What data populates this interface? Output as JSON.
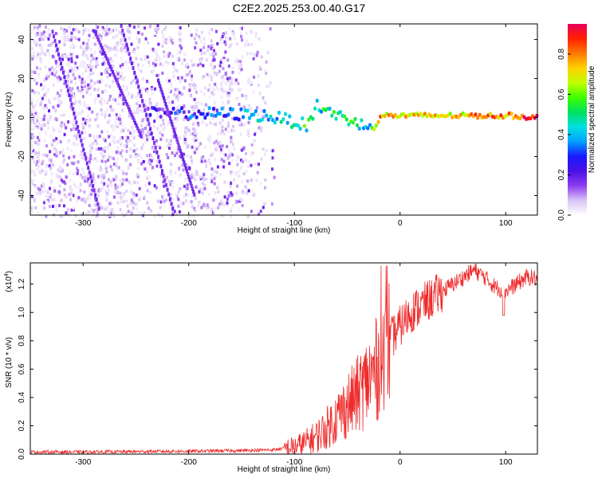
{
  "title": "C2E2.2025.253.00.40.G17",
  "chart_data": [
    {
      "type": "heatmap",
      "xlabel": "Height of straight line (km)",
      "ylabel": "Frequency (Hz)",
      "xlim": [
        -350,
        130
      ],
      "ylim": [
        -50,
        48
      ],
      "xticks": [
        -300,
        -200,
        -100,
        0,
        100
      ],
      "yticks": [
        -40,
        -20,
        0,
        20,
        40
      ],
      "colorbar": {
        "label": "Normalized spectral amplitude",
        "range": [
          0,
          0.95
        ],
        "ticks": [
          "0.0",
          "0.2",
          "0.4",
          "0.6",
          "0.8"
        ],
        "colors": [
          "#ffffff",
          "#d9c4f5",
          "#8c3cf0",
          "#4a10e6",
          "#1a1aff",
          "#00a0ff",
          "#00e0e0",
          "#00e060",
          "#40ff00",
          "#c0ff00",
          "#ffd000",
          "#ff7a00",
          "#ff2000",
          "#e8005a"
        ]
      },
      "main_trace": [
        {
          "x": -240,
          "y": 2,
          "a": 0.18
        },
        {
          "x": -170,
          "y": 2,
          "a": 0.3
        },
        {
          "x": -130,
          "y": 1,
          "a": 0.4
        },
        {
          "x": -110,
          "y": -1,
          "a": 0.45
        },
        {
          "x": -90,
          "y": -4,
          "a": 0.5
        },
        {
          "x": -80,
          "y": 6,
          "a": 0.45
        },
        {
          "x": -60,
          "y": 1,
          "a": 0.5
        },
        {
          "x": -40,
          "y": -3,
          "a": 0.5
        },
        {
          "x": -30,
          "y": -6,
          "a": 0.4
        },
        {
          "x": -20,
          "y": 1,
          "a": 0.75
        },
        {
          "x": 0,
          "y": 1,
          "a": 0.7
        },
        {
          "x": 40,
          "y": 1,
          "a": 0.7
        },
        {
          "x": 100,
          "y": 1,
          "a": 0.8
        },
        {
          "x": 130,
          "y": 0,
          "a": 0.95
        }
      ]
    },
    {
      "type": "line",
      "xlabel": "Height of straight line (km)",
      "ylabel": "SNR (10 * v/v)",
      "yscale_label": "(x10",
      "yscale_exp": "4",
      "yscale_close": ")",
      "xlim": [
        -350,
        130
      ],
      "ylim": [
        0,
        1.35
      ],
      "xticks": [
        -300,
        -200,
        -100,
        0,
        100
      ],
      "yticks": [
        0.0,
        0.2,
        0.4,
        0.6,
        0.8,
        1.0,
        1.2
      ],
      "color": "#ee2a2a",
      "series": [
        {
          "name": "SNR",
          "x": [
            -350,
            -300,
            -250,
            -200,
            -150,
            -120,
            -100,
            -90,
            -80,
            -70,
            -60,
            -50,
            -40,
            -30,
            -20,
            -15,
            -10,
            0,
            10,
            20,
            30,
            40,
            50,
            60,
            70,
            80,
            90,
            100,
            110,
            120,
            130
          ],
          "y": [
            0.015,
            0.015,
            0.018,
            0.02,
            0.025,
            0.03,
            0.05,
            0.08,
            0.12,
            0.18,
            0.26,
            0.34,
            0.42,
            0.52,
            0.62,
            0.72,
            0.8,
            0.9,
            1.0,
            1.05,
            1.1,
            1.15,
            1.2,
            1.25,
            1.3,
            1.25,
            1.18,
            1.15,
            1.2,
            1.25,
            1.24
          ]
        }
      ]
    }
  ]
}
